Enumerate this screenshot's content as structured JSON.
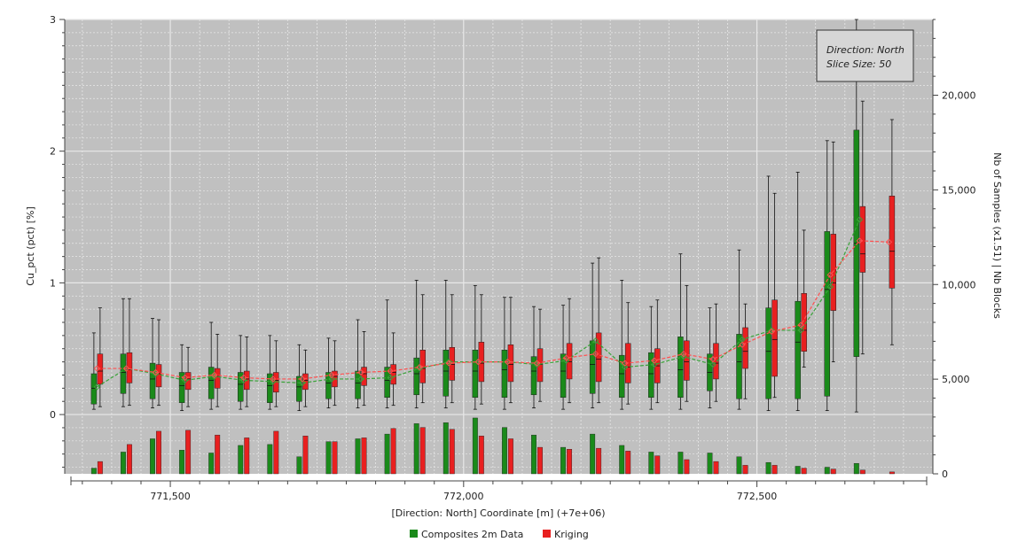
{
  "chart_data": {
    "type": "boxplot",
    "xlabel": "[Direction: North] Coordinate [m] (+7e+06)",
    "ylabel_left": "Cu_pct (pct) [%]",
    "ylabel_right": "Nb of Samples (x1.51) | Nb Blocks",
    "x_ticks": [
      {
        "value": 771500,
        "label": "771,500"
      },
      {
        "value": 772000,
        "label": "772,000"
      },
      {
        "value": 772500,
        "label": "772,500"
      }
    ],
    "left_ticks": [
      {
        "value": 0,
        "label": "0"
      },
      {
        "value": 1,
        "label": "1"
      },
      {
        "value": 2,
        "label": "2"
      },
      {
        "value": 3,
        "label": "3"
      }
    ],
    "right_ticks": [
      {
        "value": 0,
        "label": "0"
      },
      {
        "value": 5000,
        "label": "5,000"
      },
      {
        "value": 10000,
        "label": "10,000"
      },
      {
        "value": 15000,
        "label": "15,000"
      },
      {
        "value": 20000,
        "label": "20,000"
      }
    ],
    "xlim": [
      771320,
      772800
    ],
    "ylim_left": [
      -0.45,
      3.0
    ],
    "ylim_right": [
      0,
      24000
    ],
    "annotation": {
      "line1": "Direction: North",
      "line2": "Slice Size: 50"
    },
    "legend": [
      {
        "name": "Composites 2m Data",
        "color": "#1a8a1a"
      },
      {
        "name": "Kriging",
        "color": "#e82020"
      }
    ],
    "colors": {
      "plot_bg": "#c0c0c0",
      "composites": "#1a8a1a",
      "kriging": "#e82020"
    },
    "bins": [
      771375,
      771425,
      771475,
      771525,
      771575,
      771625,
      771675,
      771725,
      771775,
      771825,
      771875,
      771925,
      771975,
      772025,
      772075,
      772125,
      772175,
      772225,
      772275,
      772325,
      772375,
      772425,
      772475,
      772525,
      772575,
      772625,
      772675,
      772725
    ],
    "series": [
      {
        "name": "Composites 2m Data",
        "mean": [
          0.21,
          0.35,
          0.31,
          0.26,
          0.29,
          0.26,
          0.25,
          0.24,
          0.27,
          0.27,
          0.28,
          0.35,
          0.4,
          0.4,
          0.4,
          0.38,
          0.41,
          0.56,
          0.36,
          0.38,
          0.44,
          0.38,
          0.57,
          0.64,
          0.64,
          0.97,
          1.48,
          null
        ],
        "median": [
          0.2,
          0.32,
          0.27,
          0.22,
          0.26,
          0.23,
          0.22,
          0.21,
          0.24,
          0.24,
          0.26,
          0.31,
          0.33,
          0.33,
          0.34,
          0.33,
          0.33,
          0.38,
          0.31,
          0.31,
          0.34,
          0.32,
          0.4,
          0.48,
          0.55,
          0.95,
          1.3,
          null
        ],
        "q1": [
          0.08,
          0.16,
          0.12,
          0.09,
          0.12,
          0.1,
          0.09,
          0.1,
          0.12,
          0.12,
          0.13,
          0.15,
          0.14,
          0.13,
          0.13,
          0.15,
          0.13,
          0.16,
          0.13,
          0.13,
          0.13,
          0.18,
          0.12,
          0.12,
          0.12,
          0.14,
          0.44,
          null
        ],
        "q3": [
          0.31,
          0.46,
          0.39,
          0.32,
          0.36,
          0.32,
          0.31,
          0.29,
          0.32,
          0.33,
          0.36,
          0.43,
          0.49,
          0.49,
          0.49,
          0.44,
          0.46,
          0.56,
          0.45,
          0.47,
          0.59,
          0.46,
          0.61,
          0.81,
          0.86,
          1.39,
          2.16,
          null
        ],
        "whisker_low": [
          0.04,
          0.06,
          0.05,
          0.03,
          0.04,
          0.04,
          0.04,
          0.03,
          0.05,
          0.05,
          0.05,
          0.05,
          0.05,
          0.04,
          0.04,
          0.05,
          0.04,
          0.05,
          0.04,
          0.04,
          0.04,
          0.05,
          0.04,
          0.03,
          0.03,
          0.03,
          0.02,
          null
        ],
        "whisker_high": [
          0.62,
          0.88,
          0.73,
          0.53,
          0.7,
          0.6,
          0.6,
          0.53,
          0.58,
          0.72,
          0.87,
          1.02,
          1.02,
          0.98,
          0.89,
          0.82,
          0.83,
          1.15,
          1.02,
          0.82,
          1.22,
          0.81,
          1.25,
          1.81,
          1.84,
          2.08,
          3.0,
          null
        ],
        "counts": [
          300,
          1150,
          1850,
          1250,
          1100,
          1500,
          1550,
          900,
          1700,
          1850,
          2100,
          2650,
          2700,
          2950,
          2450,
          2050,
          1400,
          2100,
          1500,
          1150,
          1150,
          1100,
          900,
          600,
          400,
          350,
          550,
          0
        ]
      },
      {
        "name": "Kriging",
        "mean": [
          0.35,
          0.35,
          0.32,
          0.28,
          0.3,
          0.28,
          0.27,
          0.27,
          0.3,
          0.32,
          0.33,
          0.36,
          0.39,
          0.4,
          0.4,
          0.39,
          0.43,
          0.46,
          0.39,
          0.41,
          0.46,
          0.42,
          0.53,
          0.63,
          0.68,
          1.06,
          1.32,
          1.31
        ],
        "median": [
          0.33,
          0.34,
          0.31,
          0.27,
          0.29,
          0.27,
          0.26,
          0.26,
          0.29,
          0.31,
          0.32,
          0.35,
          0.38,
          0.39,
          0.38,
          0.38,
          0.4,
          0.42,
          0.36,
          0.37,
          0.4,
          0.39,
          0.48,
          0.57,
          0.64,
          1.0,
          1.22,
          1.24
        ],
        "q1": [
          0.23,
          0.24,
          0.21,
          0.19,
          0.2,
          0.19,
          0.17,
          0.19,
          0.21,
          0.22,
          0.23,
          0.24,
          0.26,
          0.25,
          0.25,
          0.25,
          0.27,
          0.25,
          0.24,
          0.24,
          0.26,
          0.27,
          0.35,
          0.29,
          0.48,
          0.79,
          1.08,
          0.96
        ],
        "q3": [
          0.46,
          0.47,
          0.38,
          0.32,
          0.35,
          0.33,
          0.32,
          0.31,
          0.33,
          0.36,
          0.38,
          0.49,
          0.51,
          0.55,
          0.53,
          0.5,
          0.54,
          0.62,
          0.54,
          0.5,
          0.56,
          0.54,
          0.66,
          0.87,
          0.92,
          1.37,
          1.58,
          1.66
        ],
        "whisker_low": [
          0.06,
          0.07,
          0.07,
          0.06,
          0.06,
          0.06,
          0.06,
          0.06,
          0.07,
          0.07,
          0.07,
          0.09,
          0.09,
          0.08,
          0.09,
          0.1,
          0.09,
          0.09,
          0.08,
          0.09,
          0.1,
          0.1,
          0.12,
          0.13,
          0.36,
          0.4,
          0.46,
          0.53
        ],
        "whisker_high": [
          0.81,
          0.88,
          0.72,
          0.51,
          0.61,
          0.59,
          0.56,
          0.49,
          0.56,
          0.63,
          0.62,
          0.91,
          0.91,
          0.91,
          0.89,
          0.8,
          0.88,
          1.19,
          0.85,
          0.87,
          0.98,
          0.84,
          0.84,
          1.68,
          1.4,
          2.07,
          2.38,
          2.24
        ],
        "counts": [
          650,
          1550,
          2250,
          2300,
          2050,
          1900,
          2250,
          2000,
          1700,
          1900,
          2400,
          2450,
          2350,
          2000,
          1850,
          1400,
          1300,
          1350,
          1200,
          950,
          750,
          650,
          450,
          450,
          300,
          250,
          200,
          100
        ]
      }
    ]
  }
}
